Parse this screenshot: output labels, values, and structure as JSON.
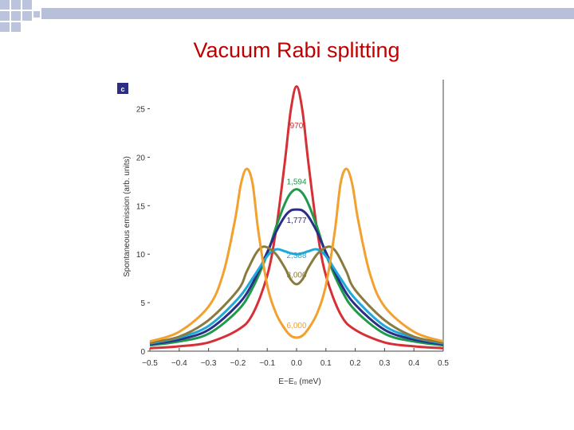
{
  "slide": {
    "title": "Vacuum Rabi splitting"
  },
  "colors": {
    "title": "#c00000",
    "corner_squares": "#bcc3dc",
    "corner_bar": "#b8bfd8"
  },
  "chart_data": {
    "type": "line",
    "panel_label": "c",
    "xlabel": "E−E₀ (meV)",
    "ylabel": "Spontaneous emission (arb. units)",
    "xlim": [
      -0.5,
      0.5
    ],
    "ylim": [
      0,
      28
    ],
    "x_ticks": [
      "−0.5",
      "−0.4",
      "−0.3",
      "−0.2",
      "−0.1",
      "0.0",
      "0.1",
      "0.2",
      "0.3",
      "0.4",
      "0.5"
    ],
    "x_tick_values": [
      -0.5,
      -0.4,
      -0.3,
      -0.2,
      -0.1,
      0.0,
      0.1,
      0.2,
      0.3,
      0.4,
      0.5
    ],
    "y_ticks": [
      "0",
      "5",
      "10",
      "15",
      "20",
      "25"
    ],
    "y_tick_values": [
      0,
      5,
      10,
      15,
      20,
      25
    ],
    "grid": false,
    "series": [
      {
        "name": "970",
        "color": "#d62f35",
        "label_at": [
          0.0,
          23
        ],
        "x": [
          -0.5,
          -0.4,
          -0.3,
          -0.2,
          -0.15,
          -0.1,
          -0.07,
          -0.04,
          -0.02,
          0.0,
          0.02,
          0.04,
          0.07,
          0.1,
          0.15,
          0.2,
          0.3,
          0.4,
          0.5
        ],
        "y": [
          0.3,
          0.5,
          0.9,
          2.2,
          3.8,
          7.8,
          12.5,
          19.5,
          24.8,
          27.3,
          24.8,
          19.5,
          12.5,
          7.8,
          3.8,
          2.2,
          0.9,
          0.5,
          0.3
        ]
      },
      {
        "name": "1,594",
        "color": "#1f9a4a",
        "label_at": [
          0.0,
          17.2
        ],
        "x": [
          -0.5,
          -0.4,
          -0.3,
          -0.2,
          -0.15,
          -0.1,
          -0.07,
          -0.04,
          -0.02,
          0.0,
          0.02,
          0.04,
          0.07,
          0.1,
          0.15,
          0.2,
          0.3,
          0.4,
          0.5
        ],
        "y": [
          0.6,
          1.0,
          1.8,
          4.2,
          6.5,
          10.0,
          12.8,
          15.2,
          16.3,
          16.7,
          16.3,
          15.2,
          12.8,
          10.0,
          6.5,
          4.2,
          1.8,
          1.0,
          0.6
        ]
      },
      {
        "name": "1,777",
        "color": "#2a2e86",
        "label_at": [
          0.0,
          13.2
        ],
        "x": [
          -0.5,
          -0.4,
          -0.3,
          -0.2,
          -0.15,
          -0.1,
          -0.07,
          -0.04,
          -0.02,
          0.0,
          0.02,
          0.04,
          0.07,
          0.1,
          0.15,
          0.2,
          0.3,
          0.4,
          0.5
        ],
        "y": [
          0.7,
          1.2,
          2.2,
          4.8,
          7.0,
          10.2,
          12.3,
          13.9,
          14.5,
          14.6,
          14.5,
          13.9,
          12.3,
          10.2,
          7.0,
          4.8,
          2.2,
          1.2,
          0.7
        ]
      },
      {
        "name": "2,388",
        "color": "#1fa8d8",
        "label_at": [
          0.0,
          9.6
        ],
        "x": [
          -0.5,
          -0.4,
          -0.3,
          -0.2,
          -0.15,
          -0.1,
          -0.07,
          -0.04,
          -0.02,
          0.0,
          0.02,
          0.04,
          0.07,
          0.1,
          0.15,
          0.2,
          0.3,
          0.4,
          0.5
        ],
        "y": [
          0.8,
          1.4,
          2.6,
          5.4,
          7.5,
          9.8,
          10.5,
          10.3,
          10.1,
          10.0,
          10.1,
          10.3,
          10.5,
          9.8,
          7.5,
          5.4,
          2.6,
          1.4,
          0.8
        ]
      },
      {
        "name": "3,000",
        "color": "#8a7a3e",
        "label_at": [
          0.0,
          7.6
        ],
        "x": [
          -0.5,
          -0.4,
          -0.3,
          -0.2,
          -0.17,
          -0.14,
          -0.12,
          -0.1,
          -0.07,
          -0.04,
          -0.02,
          0.0,
          0.02,
          0.04,
          0.07,
          0.1,
          0.12,
          0.14,
          0.17,
          0.2,
          0.3,
          0.4,
          0.5
        ],
        "y": [
          0.9,
          1.5,
          3.2,
          6.3,
          8.2,
          10.0,
          10.7,
          10.7,
          10.0,
          8.6,
          7.4,
          6.9,
          7.4,
          8.6,
          10.0,
          10.7,
          10.7,
          10.0,
          8.2,
          6.3,
          3.2,
          1.5,
          0.9
        ]
      },
      {
        "name": "6,000",
        "color": "#f2a02e",
        "label_at": [
          0.0,
          2.4
        ],
        "x": [
          -0.5,
          -0.4,
          -0.3,
          -0.25,
          -0.21,
          -0.19,
          -0.17,
          -0.15,
          -0.13,
          -0.1,
          -0.07,
          -0.04,
          -0.02,
          0.0,
          0.02,
          0.04,
          0.07,
          0.1,
          0.13,
          0.15,
          0.17,
          0.19,
          0.21,
          0.25,
          0.3,
          0.4,
          0.5
        ],
        "y": [
          1.0,
          2.0,
          4.6,
          8.0,
          13.5,
          17.2,
          18.8,
          17.3,
          12.3,
          6.8,
          3.9,
          2.3,
          1.6,
          1.4,
          1.6,
          2.3,
          3.9,
          6.8,
          12.3,
          17.3,
          18.8,
          17.2,
          13.5,
          8.0,
          4.6,
          2.0,
          1.0
        ]
      }
    ]
  }
}
